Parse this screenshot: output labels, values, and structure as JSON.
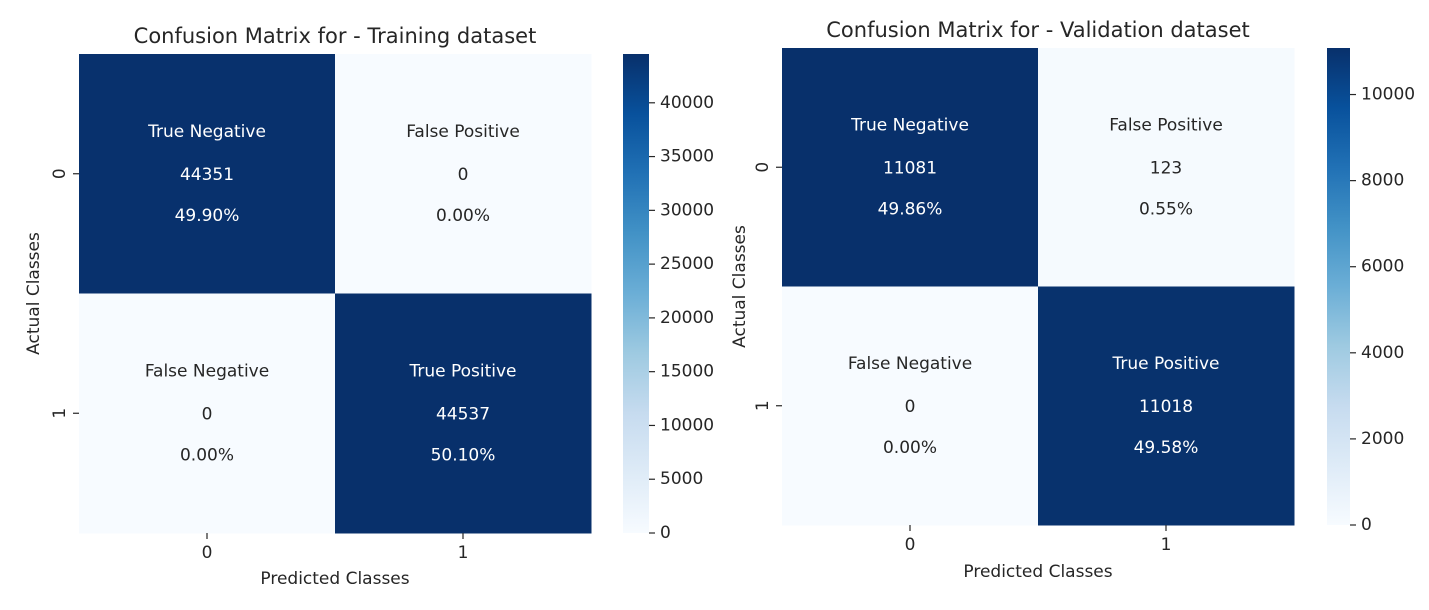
{
  "chart_data": [
    {
      "type": "heatmap",
      "title": "Confusion Matrix for - Training dataset",
      "xlabel": "Predicted Classes",
      "ylabel": "Actual Classes",
      "x_categories": [
        "0",
        "1"
      ],
      "y_categories": [
        "0",
        "1"
      ],
      "cells": [
        [
          {
            "label": "True Negative",
            "count": "44351",
            "percent": "49.90%",
            "value": 44351
          },
          {
            "label": "False Positive",
            "count": "0",
            "percent": "0.00%",
            "value": 0
          }
        ],
        [
          {
            "label": "False Negative",
            "count": "0",
            "percent": "0.00%",
            "value": 0
          },
          {
            "label": "True Positive",
            "count": "44537",
            "percent": "50.10%",
            "value": 44537
          }
        ]
      ],
      "colorbar": {
        "min": 0,
        "max": 44537,
        "ticks": [
          0,
          5000,
          10000,
          15000,
          20000,
          25000,
          30000,
          35000,
          40000
        ],
        "tick_labels": [
          "0",
          "5000",
          "10000",
          "15000",
          "20000",
          "25000",
          "30000",
          "35000",
          "40000"
        ]
      }
    },
    {
      "type": "heatmap",
      "title": "Confusion Matrix for - Validation dataset",
      "xlabel": "Predicted Classes",
      "ylabel": "Actual Classes",
      "x_categories": [
        "0",
        "1"
      ],
      "y_categories": [
        "0",
        "1"
      ],
      "cells": [
        [
          {
            "label": "True Negative",
            "count": "11081",
            "percent": "49.86%",
            "value": 11081
          },
          {
            "label": "False Positive",
            "count": "123",
            "percent": "0.55%",
            "value": 123
          }
        ],
        [
          {
            "label": "False Negative",
            "count": "0",
            "percent": "0.00%",
            "value": 0
          },
          {
            "label": "True Positive",
            "count": "11018",
            "percent": "49.58%",
            "value": 11018
          }
        ]
      ],
      "colorbar": {
        "min": 0,
        "max": 11081,
        "ticks": [
          0,
          2000,
          4000,
          6000,
          8000,
          10000
        ],
        "tick_labels": [
          "0",
          "2000",
          "4000",
          "6000",
          "8000",
          "10000"
        ]
      }
    }
  ],
  "colormap": {
    "name": "Blues",
    "dark_text_color": "#262626",
    "light_text_color": "#ffffff"
  }
}
